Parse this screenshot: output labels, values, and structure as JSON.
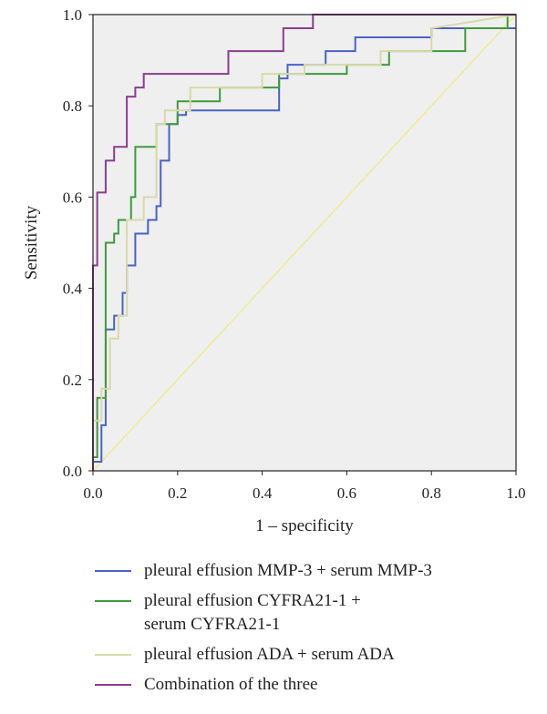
{
  "chart_data": {
    "type": "line",
    "xlabel": "1 – specificity",
    "ylabel": "Sensitivity",
    "xlim": [
      0,
      1
    ],
    "ylim": [
      0,
      1
    ],
    "x_ticks": [
      "0.0",
      "0.2",
      "0.4",
      "0.6",
      "0.8",
      "1.0"
    ],
    "y_ticks": [
      "0.0",
      "0.2",
      "0.4",
      "0.6",
      "0.8",
      "1.0"
    ],
    "plot_background": "#efefef",
    "legend_position": "bottom",
    "reference_line": {
      "color": "#f0eb9a",
      "x": [
        0,
        1
      ],
      "y": [
        0,
        1
      ]
    },
    "series": [
      {
        "name": "pleural effusion MMP-3 + serum MMP-3",
        "color": "#4a62c4",
        "x": [
          0.0,
          0.0,
          0.02,
          0.02,
          0.03,
          0.03,
          0.05,
          0.05,
          0.07,
          0.07,
          0.08,
          0.08,
          0.1,
          0.1,
          0.13,
          0.13,
          0.15,
          0.15,
          0.16,
          0.16,
          0.18,
          0.18,
          0.2,
          0.2,
          0.22,
          0.22,
          0.44,
          0.44,
          0.46,
          0.46,
          0.55,
          0.55,
          0.62,
          0.62,
          0.7,
          0.7,
          0.8,
          0.8,
          0.95,
          0.95,
          1.0
        ],
        "y": [
          0.0,
          0.02,
          0.02,
          0.1,
          0.1,
          0.31,
          0.31,
          0.34,
          0.34,
          0.39,
          0.39,
          0.45,
          0.45,
          0.52,
          0.52,
          0.55,
          0.55,
          0.58,
          0.58,
          0.68,
          0.68,
          0.76,
          0.76,
          0.78,
          0.78,
          0.79,
          0.79,
          0.86,
          0.86,
          0.89,
          0.89,
          0.92,
          0.92,
          0.95,
          0.95,
          0.95,
          0.95,
          0.97,
          0.97,
          0.97,
          0.97
        ]
      },
      {
        "name": "pleural effusion CYFRA21-1 +\nserum CYFRA21-1",
        "color": "#3e9a3e",
        "x": [
          0.0,
          0.0,
          0.01,
          0.01,
          0.03,
          0.03,
          0.05,
          0.05,
          0.06,
          0.06,
          0.09,
          0.09,
          0.1,
          0.1,
          0.15,
          0.15,
          0.2,
          0.2,
          0.3,
          0.3,
          0.44,
          0.44,
          0.6,
          0.6,
          0.7,
          0.7,
          0.88,
          0.88,
          0.98,
          0.98,
          1.0
        ],
        "y": [
          0.0,
          0.03,
          0.03,
          0.16,
          0.16,
          0.5,
          0.5,
          0.52,
          0.52,
          0.55,
          0.55,
          0.6,
          0.6,
          0.71,
          0.71,
          0.76,
          0.76,
          0.81,
          0.81,
          0.84,
          0.84,
          0.87,
          0.87,
          0.89,
          0.89,
          0.92,
          0.92,
          0.97,
          0.97,
          1.0,
          1.0
        ]
      },
      {
        "name": "pleural effusion ADA + serum ADA",
        "color": "#d9d9a8",
        "x": [
          0.0,
          0.0,
          0.02,
          0.02,
          0.04,
          0.04,
          0.06,
          0.06,
          0.08,
          0.08,
          0.12,
          0.12,
          0.15,
          0.15,
          0.17,
          0.17,
          0.23,
          0.23,
          0.4,
          0.4,
          0.5,
          0.5,
          0.68,
          0.68,
          0.8,
          0.8,
          1.0
        ],
        "y": [
          0.0,
          0.11,
          0.11,
          0.18,
          0.18,
          0.29,
          0.29,
          0.34,
          0.34,
          0.55,
          0.55,
          0.6,
          0.6,
          0.76,
          0.76,
          0.79,
          0.79,
          0.84,
          0.84,
          0.87,
          0.87,
          0.89,
          0.89,
          0.92,
          0.92,
          0.97,
          1.0
        ]
      },
      {
        "name": "Combination of the three",
        "color": "#8a3e8e",
        "x": [
          0.0,
          0.0,
          0.01,
          0.01,
          0.03,
          0.03,
          0.05,
          0.05,
          0.06,
          0.06,
          0.08,
          0.08,
          0.1,
          0.1,
          0.12,
          0.12,
          0.32,
          0.32,
          0.45,
          0.45,
          0.52,
          0.52,
          0.85,
          0.85,
          1.0
        ],
        "y": [
          0.0,
          0.45,
          0.45,
          0.61,
          0.61,
          0.68,
          0.68,
          0.71,
          0.71,
          0.71,
          0.71,
          0.82,
          0.82,
          0.84,
          0.84,
          0.87,
          0.87,
          0.92,
          0.92,
          0.97,
          0.97,
          1.0,
          1.0,
          1.0,
          1.0
        ]
      }
    ]
  }
}
